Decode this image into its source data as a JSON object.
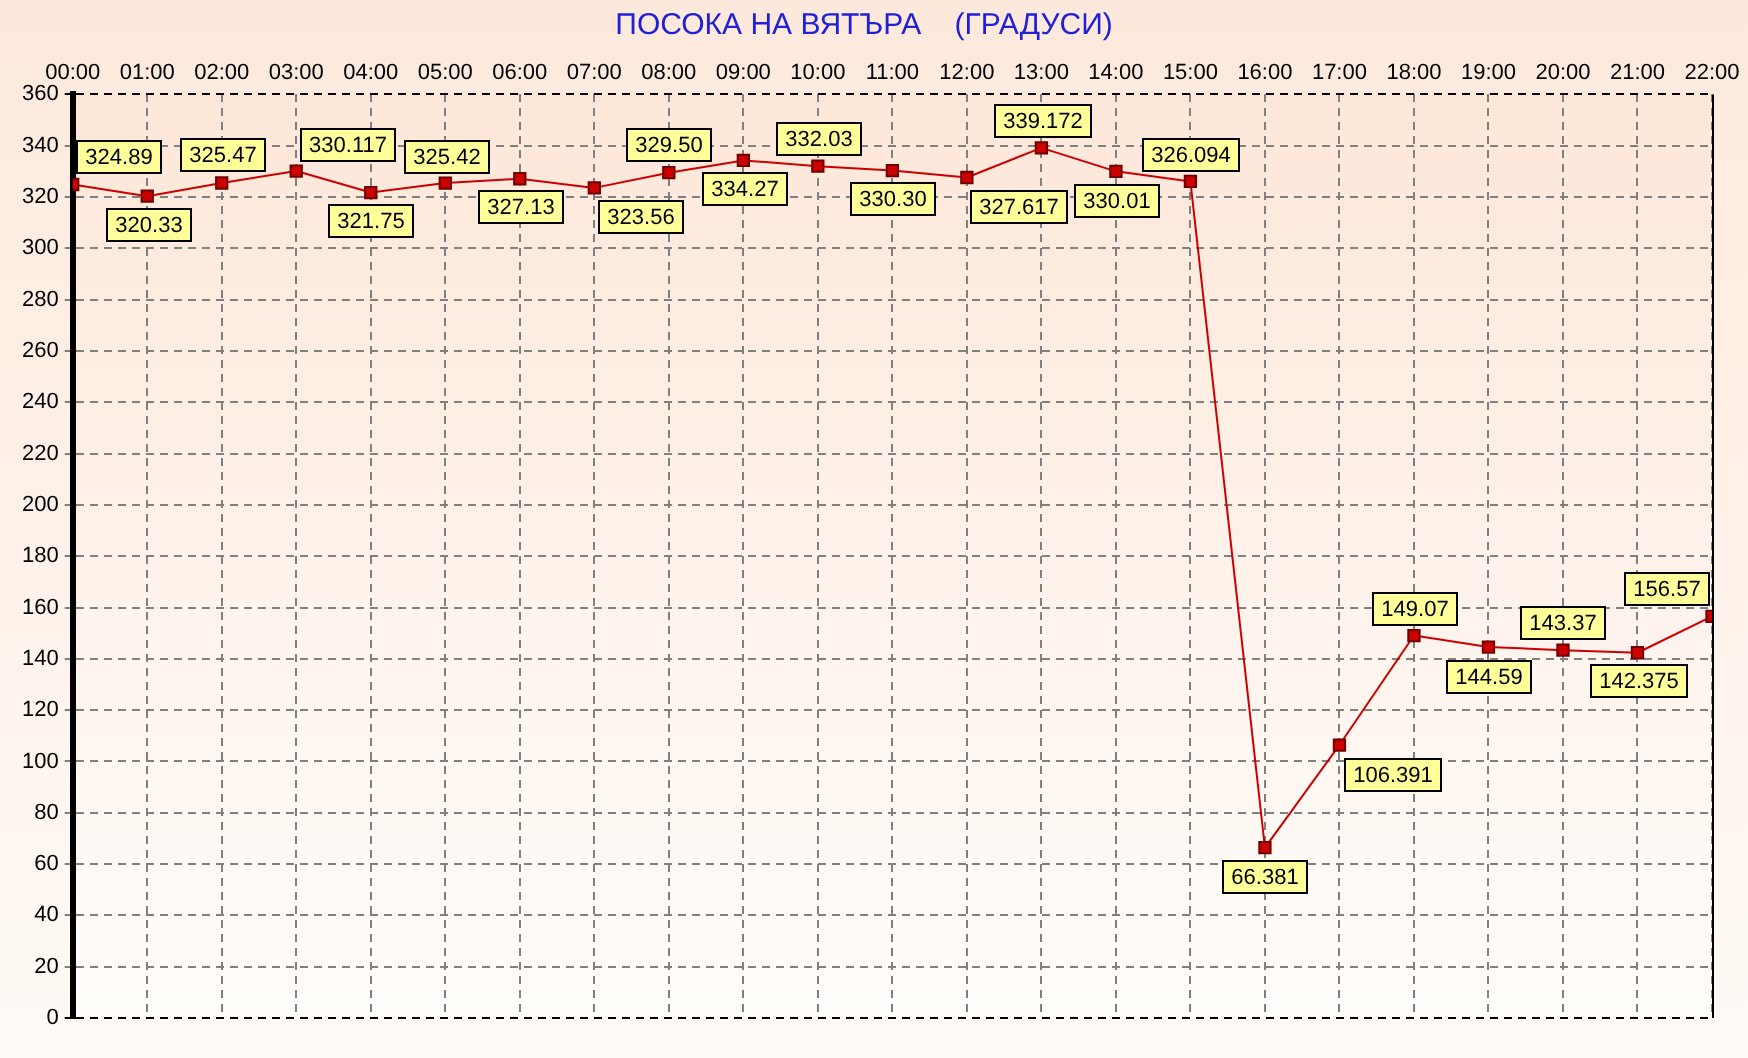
{
  "chart_data": {
    "type": "line",
    "title": "ПОСОКА НА ВЯТЪРА    (ГРАДУСИ)",
    "x": [
      0,
      1,
      2,
      3,
      4,
      5,
      6,
      7,
      8,
      9,
      10,
      11,
      12,
      13,
      14,
      15,
      16,
      17,
      18,
      19,
      20,
      21,
      22
    ],
    "xlim": [
      0,
      22
    ],
    "xticks": [
      {
        "value": 0,
        "label": "00:00"
      },
      {
        "value": 1,
        "label": "01:00"
      },
      {
        "value": 2,
        "label": "02:00"
      },
      {
        "value": 3,
        "label": "03:00"
      },
      {
        "value": 4,
        "label": "04:00"
      },
      {
        "value": 5,
        "label": "05:00"
      },
      {
        "value": 6,
        "label": "06:00"
      },
      {
        "value": 7,
        "label": "07:00"
      },
      {
        "value": 8,
        "label": "08:00"
      },
      {
        "value": 9,
        "label": "09:00"
      },
      {
        "value": 10,
        "label": "10:00"
      },
      {
        "value": 11,
        "label": "11:00"
      },
      {
        "value": 12,
        "label": "12:00"
      },
      {
        "value": 13,
        "label": "13:00"
      },
      {
        "value": 14,
        "label": "14:00"
      },
      {
        "value": 15,
        "label": "15:00"
      },
      {
        "value": 16,
        "label": "16:00"
      },
      {
        "value": 17,
        "label": "17:00"
      },
      {
        "value": 18,
        "label": "18:00"
      },
      {
        "value": 19,
        "label": "19:00"
      },
      {
        "value": 20,
        "label": "20:00"
      },
      {
        "value": 21,
        "label": "21:00"
      },
      {
        "value": 22,
        "label": "22:00"
      }
    ],
    "series": [
      {
        "color": "#cc0000",
        "values": [
          324.89,
          320.33,
          325.47,
          330.117,
          321.75,
          325.42,
          327.13,
          323.56,
          329.5,
          334.27,
          332.03,
          330.3,
          327.617,
          339.172,
          330.01,
          326.094,
          66.381,
          106.391,
          149.07,
          144.59,
          143.37,
          142.375,
          156.57
        ],
        "value_labels": [
          "324.89",
          "320.33",
          "325.47",
          "330.117",
          "321.75",
          "325.42",
          "327.13",
          "323.56",
          "329.50",
          "334.27",
          "332.03",
          "330.30",
          "327.617",
          "339.172",
          "330.01",
          "326.094",
          "66.381",
          "106.391",
          "149.07",
          "144.59",
          "143.37",
          "142.375",
          "156.57"
        ]
      }
    ],
    "ylim": [
      0,
      360
    ],
    "yticks": [
      0,
      20,
      40,
      60,
      80,
      100,
      120,
      140,
      160,
      180,
      200,
      220,
      240,
      260,
      280,
      300,
      320,
      340,
      360
    ],
    "grid": true,
    "legend": false,
    "marker": "square",
    "line_style": "solid"
  }
}
